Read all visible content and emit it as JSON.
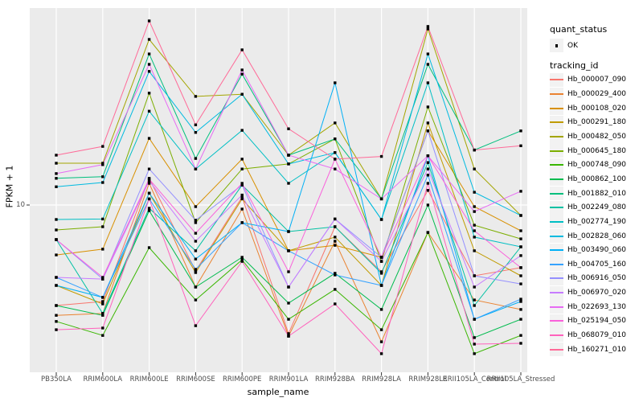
{
  "figure": {
    "y_axis": {
      "title": "FPKM + 1",
      "tick_labels": [
        "10"
      ],
      "scale": "log10"
    },
    "x_axis": {
      "title": "sample_name"
    },
    "legend": {
      "quant_status": {
        "title": "quant_status",
        "items": [
          {
            "label": "OK",
            "marker": "black-point"
          }
        ]
      },
      "tracking_id": {
        "title": "tracking_id"
      }
    }
  },
  "chart_data": {
    "type": "line",
    "title": "",
    "xlabel": "sample_name",
    "ylabel": "FPKM + 1",
    "y_scale": "log10",
    "y_ticks": [
      10
    ],
    "ylim": [
      2,
      65
    ],
    "grid": "white-on-gray",
    "legend_position": "right",
    "panel_background": "#EBEBEB",
    "gridline_color": "#FFFFFF",
    "point_color": "#000000",
    "quant_status": "OK",
    "categories": [
      "PB350LA",
      "RRIM600LA",
      "RRIM600LE",
      "RRIM600SE",
      "RRIM600PE",
      "RRIM901LA",
      "RRIM928BA",
      "RRIM928LA",
      "RRIM928LE",
      "RRII105LA_Control",
      "RRII105LA_Stressed"
    ],
    "series": [
      {
        "name": "Hb_000007_090",
        "color": "#F8766D",
        "values": [
          3.83,
          3.98,
          12.9,
          5.33,
          10.8,
          2.93,
          8.13,
          5.29,
          11.5,
          5.09,
          5.5
        ]
      },
      {
        "name": "Hb_000029_400",
        "color": "#EA8331",
        "values": [
          3.49,
          3.55,
          12.3,
          4.57,
          9.62,
          2.86,
          7.08,
          2.71,
          7.7,
          4.04,
          3.69
        ]
      },
      {
        "name": "Hb_000108_020",
        "color": "#D89000",
        "values": [
          6.21,
          6.56,
          18.9,
          9.85,
          15.5,
          6.46,
          6.81,
          6.07,
          20.3,
          9.85,
          7.82
        ]
      },
      {
        "name": "Hb_000291_180",
        "color": "#C09B00",
        "values": [
          4.64,
          3.89,
          11.2,
          5.25,
          10.6,
          6.46,
          7.36,
          4.64,
          21.9,
          6.46,
          5.09
        ]
      },
      {
        "name": "Hb_000482_050",
        "color": "#A3A500",
        "values": [
          14.9,
          14.9,
          48.6,
          28.2,
          28.8,
          16.1,
          21.9,
          10.6,
          53.7,
          14.1,
          9.05
        ]
      },
      {
        "name": "Hb_000645_180",
        "color": "#7CAE00",
        "values": [
          7.88,
          8.13,
          29.1,
          8.45,
          14.1,
          14.8,
          18.8,
          5.84,
          25.5,
          8.25,
          7.24
        ]
      },
      {
        "name": "Hb_000748_090",
        "color": "#39B600",
        "values": [
          3.29,
          2.88,
          6.66,
          4.04,
          5.93,
          3.36,
          4.47,
          3.04,
          7.7,
          2.42,
          2.88
        ]
      },
      {
        "name": "Hb_000862_100",
        "color": "#00BB4E",
        "values": [
          3.83,
          3.49,
          9.48,
          4.57,
          6.07,
          3.92,
          5.21,
          3.69,
          10.0,
          2.82,
          3.36
        ]
      },
      {
        "name": "Hb_001882_010",
        "color": "#00BF7D",
        "values": [
          12.9,
          13.1,
          42.3,
          15.6,
          34.9,
          16.1,
          18.8,
          10.6,
          38.3,
          16.9,
          20.3
        ]
      },
      {
        "name": "Hb_002249_080",
        "color": "#00C1A3",
        "values": [
          7.19,
          3.55,
          9.7,
          6.46,
          12.1,
          7.76,
          8.13,
          5.21,
          15.0,
          3.83,
          6.71
        ]
      },
      {
        "name": "Hb_002774_190",
        "color": "#00BFC4",
        "values": [
          8.71,
          8.75,
          24.5,
          14.1,
          20.4,
          12.3,
          16.5,
          8.71,
          32.1,
          7.36,
          6.71
        ]
      },
      {
        "name": "Hb_002828_060",
        "color": "#00BAE0",
        "values": [
          11.9,
          12.4,
          35.8,
          20.0,
          28.8,
          14.8,
          16.5,
          8.71,
          42.3,
          11.3,
          9.05
        ]
      },
      {
        "name": "Hb_003490_060",
        "color": "#00B0F6",
        "values": [
          4.64,
          4.14,
          11.2,
          5.97,
          8.45,
          7.76,
          32.1,
          4.64,
          16.0,
          3.36,
          3.98
        ]
      },
      {
        "name": "Hb_004705_160",
        "color": "#35A2FF",
        "values": [
          5.01,
          4.14,
          10.6,
          5.41,
          8.45,
          6.46,
          5.13,
          4.64,
          13.3,
          3.36,
          4.07
        ]
      },
      {
        "name": "Hb_006916_050",
        "color": "#9590FF",
        "values": [
          7.19,
          4.93,
          14.1,
          8.65,
          12.1,
          4.57,
          8.75,
          6.07,
          20.3,
          5.09,
          4.71
        ]
      },
      {
        "name": "Hb_006970_020",
        "color": "#C77CFF",
        "values": [
          5.01,
          4.93,
          12.6,
          7.08,
          11.0,
          4.57,
          8.75,
          5.84,
          14.1,
          4.57,
          6.17
        ]
      },
      {
        "name": "Hb_022693_130",
        "color": "#E76BF3",
        "values": [
          13.5,
          14.7,
          38.3,
          14.1,
          36.3,
          16.1,
          14.1,
          10.6,
          16.0,
          9.4,
          11.4
        ]
      },
      {
        "name": "Hb_025194_050",
        "color": "#FA62DB",
        "values": [
          7.19,
          5.01,
          12.8,
          7.64,
          12.3,
          5.29,
          15.5,
          6.07,
          16.0,
          7.82,
          5.5
        ]
      },
      {
        "name": "Hb_068079_010",
        "color": "#FF62BC",
        "values": [
          3.04,
          3.09,
          10.6,
          3.16,
          5.84,
          2.86,
          3.89,
          2.42,
          12.3,
          2.65,
          2.67
        ]
      },
      {
        "name": "Hb_160271_010",
        "color": "#FF6A98",
        "values": [
          16.1,
          17.5,
          58.0,
          21.5,
          44.0,
          20.7,
          15.5,
          15.9,
          55.0,
          16.9,
          17.6
        ]
      }
    ]
  }
}
